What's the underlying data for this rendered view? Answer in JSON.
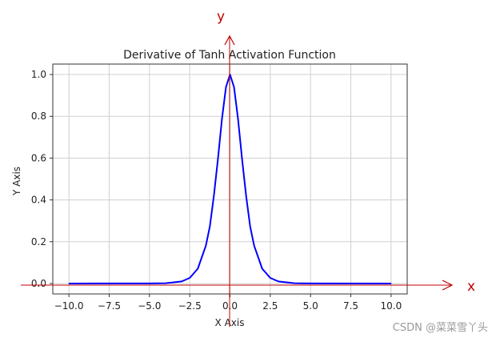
{
  "chart_data": {
    "type": "line",
    "title": "Derivative of Tanh Activation Function",
    "xlabel": "X Axis",
    "ylabel": "Y Axis",
    "xlim": [
      -11,
      11
    ],
    "ylim": [
      -0.05,
      1.05
    ],
    "xticks": [
      -10.0,
      -7.5,
      -5.0,
      -2.5,
      0.0,
      2.5,
      5.0,
      7.5,
      10.0
    ],
    "xtick_labels": [
      "−10.0",
      "−7.5",
      "−5.0",
      "−2.5",
      "0.0",
      "2.5",
      "5.0",
      "7.5",
      "10.0"
    ],
    "yticks": [
      0.0,
      0.2,
      0.4,
      0.6,
      0.8,
      1.0
    ],
    "ytick_labels": [
      "0.0",
      "0.2",
      "0.4",
      "0.6",
      "0.8",
      "1.0"
    ],
    "grid": true,
    "series": [
      {
        "color": "#0000ff",
        "x": [
          -10,
          -5,
          -4,
          -3,
          -2.5,
          -2,
          -1.5,
          -1.25,
          -1,
          -0.75,
          -0.5,
          -0.25,
          0,
          0.25,
          0.5,
          0.75,
          1,
          1.25,
          1.5,
          2,
          2.5,
          3,
          4,
          5,
          10
        ],
        "y": [
          0.0,
          0.0002,
          0.0013,
          0.0099,
          0.0266,
          0.0707,
          0.1807,
          0.2733,
          0.42,
          0.5948,
          0.7864,
          0.9401,
          1.0,
          0.9401,
          0.7864,
          0.5948,
          0.42,
          0.2733,
          0.1807,
          0.0707,
          0.0266,
          0.0099,
          0.0013,
          0.0002,
          0.0
        ]
      }
    ]
  },
  "overlay": {
    "y_letter": "y",
    "x_letter": "x",
    "color": "#c00000"
  },
  "watermark": "CSDN @菜菜雪丫头"
}
